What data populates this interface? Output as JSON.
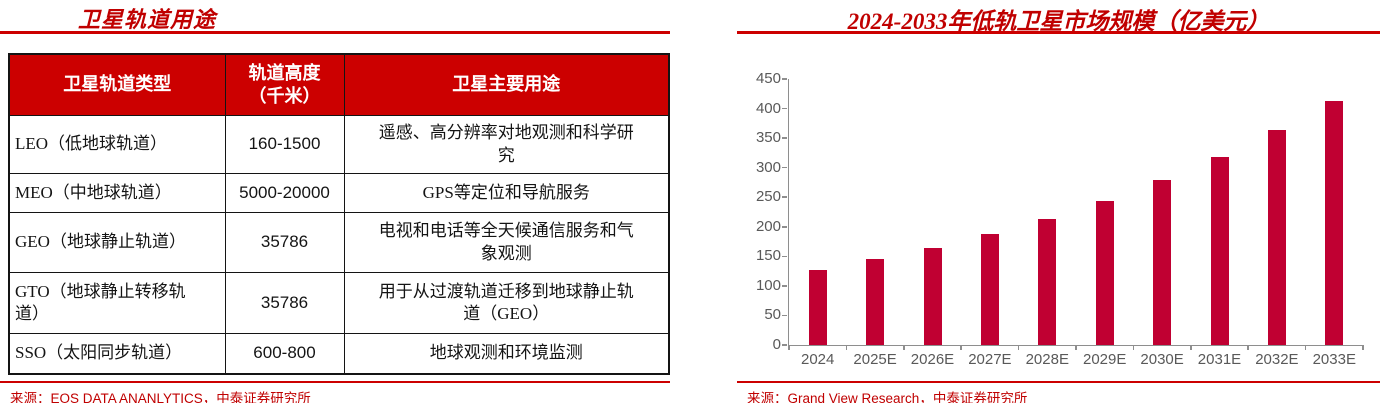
{
  "left_panel": {
    "title": "卫星轨道用途",
    "table": {
      "headers": [
        "卫星轨道类型",
        "轨道高度\n（千米）",
        "卫星主要用途"
      ],
      "rows": [
        {
          "type": "LEO（低地球轨道）",
          "altitude": "160-1500",
          "usage": "遥感、高分辨率对地观测和科学研\n究"
        },
        {
          "type": "MEO（中地球轨道）",
          "altitude": "5000-20000",
          "usage": "GPS等定位和导航服务"
        },
        {
          "type": "GEO（地球静止轨道）",
          "altitude": "35786",
          "usage": "电视和电话等全天候通信服务和气\n象观测"
        },
        {
          "type": "GTO（地球静止转移轨\n道）",
          "altitude": "35786",
          "usage": "用于从过渡轨道迁移到地球静止轨\n道（GEO）"
        },
        {
          "type": "SSO（太阳同步轨道）",
          "altitude": "600-800",
          "usage": "地球观测和环境监测"
        }
      ]
    },
    "source": "来源：EOS DATA ANANLYTICS，中泰证券研究所"
  },
  "right_panel": {
    "title": "2024-2033年低轨卫星市场规模（亿美元）",
    "source": "来源：Grand View Research，中泰证券研究所"
  },
  "chart_data": {
    "type": "bar",
    "title": "2024-2033年低轨卫星市场规模（亿美元）",
    "categories": [
      "2024",
      "2025E",
      "2026E",
      "2027E",
      "2028E",
      "2029E",
      "2030E",
      "2031E",
      "2032E",
      "2033E"
    ],
    "values": [
      127,
      145,
      164,
      188,
      214,
      244,
      279,
      318,
      363,
      412
    ],
    "xlabel": "",
    "ylabel": "",
    "ylim": [
      0,
      450
    ],
    "yticks": [
      0,
      50,
      100,
      150,
      200,
      250,
      300,
      350,
      400,
      450
    ],
    "grid": false,
    "legend": "none",
    "bar_color": "#C00032"
  },
  "colors": {
    "accent_red": "#C00000",
    "rule_red": "#CC0000",
    "table_header_bg": "#CC0000",
    "bar": "#C00032",
    "axis_text": "#595959",
    "axis_line": "#8E8E8E"
  }
}
